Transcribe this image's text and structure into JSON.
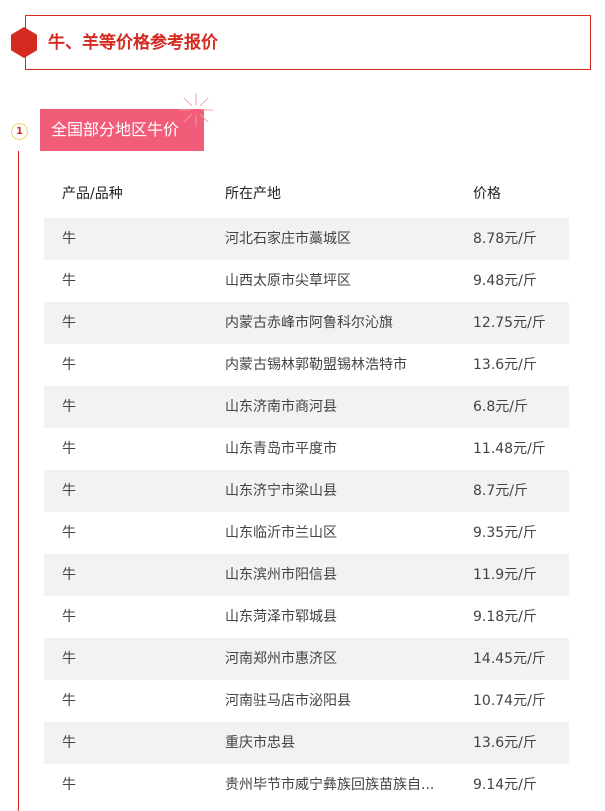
{
  "header": {
    "title": "牛、羊等价格参考报价"
  },
  "section": {
    "number": "1",
    "title": "全国部分地区牛价"
  },
  "table": {
    "columns": [
      "产品/品种",
      "所在产地",
      "价格"
    ],
    "rows": [
      [
        "牛",
        "河北石家庄市藁城区",
        "8.78元/斤"
      ],
      [
        "牛",
        "山西太原市尖草坪区",
        "9.48元/斤"
      ],
      [
        "牛",
        "内蒙古赤峰市阿鲁科尔沁旗",
        "12.75元/斤"
      ],
      [
        "牛",
        "内蒙古锡林郭勒盟锡林浩特市",
        "13.6元/斤"
      ],
      [
        "牛",
        "山东济南市商河县",
        "6.8元/斤"
      ],
      [
        "牛",
        "山东青岛市平度市",
        "11.48元/斤"
      ],
      [
        "牛",
        "山东济宁市梁山县",
        "8.7元/斤"
      ],
      [
        "牛",
        "山东临沂市兰山区",
        "9.35元/斤"
      ],
      [
        "牛",
        "山东滨州市阳信县",
        "11.9元/斤"
      ],
      [
        "牛",
        "山东菏泽市郓城县",
        "9.18元/斤"
      ],
      [
        "牛",
        "河南郑州市惠济区",
        "14.45元/斤"
      ],
      [
        "牛",
        "河南驻马店市泌阳县",
        "10.74元/斤"
      ],
      [
        "牛",
        "重庆市忠县",
        "13.6元/斤"
      ],
      [
        "牛",
        "贵州毕节市威宁彝族回族苗族自...",
        "9.14元/斤"
      ]
    ]
  },
  "colors": {
    "accent": "#d42a20",
    "badge": "#f15c78",
    "stripe": "#f2f2f2"
  }
}
